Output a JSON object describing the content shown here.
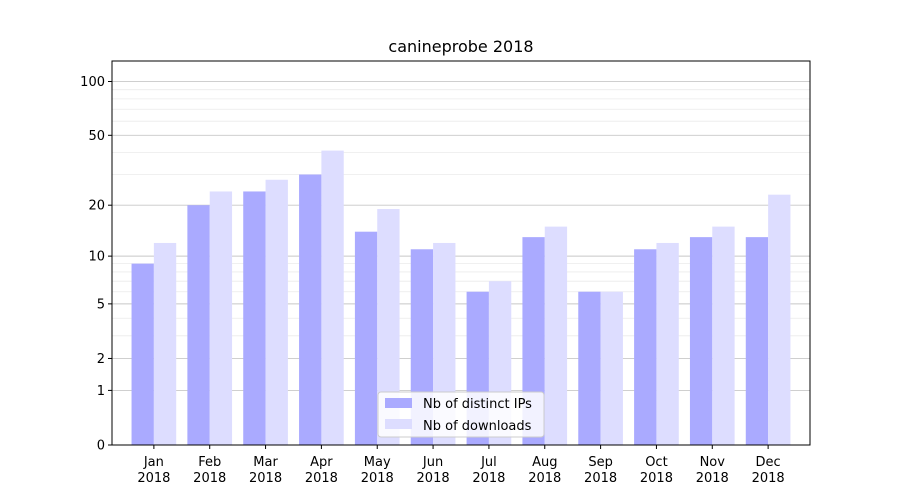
{
  "chart_data": {
    "type": "bar",
    "title": "canineprobe 2018",
    "xlabel": "",
    "ylabel": "",
    "yscale": "symlog",
    "ylim": [
      0,
      130
    ],
    "yticks": [
      0,
      1,
      2,
      5,
      10,
      20,
      50,
      100
    ],
    "ytick_labels": [
      "0",
      "1",
      "2",
      "5",
      "10",
      "20",
      "50",
      "100"
    ],
    "categories": [
      "Jan\n2018",
      "Feb\n2018",
      "Mar\n2018",
      "Apr\n2018",
      "May\n2018",
      "Jun\n2018",
      "Jul\n2018",
      "Aug\n2018",
      "Sep\n2018",
      "Oct\n2018",
      "Nov\n2018",
      "Dec\n2018"
    ],
    "category_labels": [
      {
        "month": "Jan",
        "year": "2018"
      },
      {
        "month": "Feb",
        "year": "2018"
      },
      {
        "month": "Mar",
        "year": "2018"
      },
      {
        "month": "Apr",
        "year": "2018"
      },
      {
        "month": "May",
        "year": "2018"
      },
      {
        "month": "Jun",
        "year": "2018"
      },
      {
        "month": "Jul",
        "year": "2018"
      },
      {
        "month": "Aug",
        "year": "2018"
      },
      {
        "month": "Sep",
        "year": "2018"
      },
      {
        "month": "Oct",
        "year": "2018"
      },
      {
        "month": "Nov",
        "year": "2018"
      },
      {
        "month": "Dec",
        "year": "2018"
      }
    ],
    "series": [
      {
        "name": "Nb of distinct IPs",
        "color": "#aaaaff",
        "values": [
          9,
          20,
          24,
          30,
          14,
          11,
          6,
          13,
          6,
          11,
          13,
          13
        ]
      },
      {
        "name": "Nb of downloads",
        "color": "#ddddff",
        "values": [
          12,
          24,
          28,
          41,
          19,
          12,
          7,
          15,
          6,
          12,
          15,
          23
        ]
      }
    ],
    "grid": true,
    "legend_position": "lower-center"
  }
}
